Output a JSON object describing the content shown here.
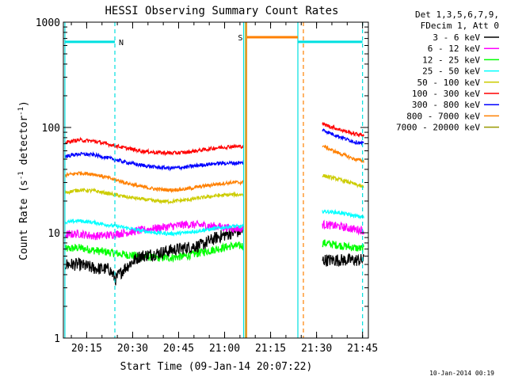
{
  "footer_timestamp": "10-Jan-2014 00:19",
  "chart_data": {
    "type": "line",
    "title": "HESSI Observing Summary Count Rates",
    "xlabel": "Start Time (09-Jan-14 20:07:22)",
    "ylabel_prefix": "Count Rate (s",
    "ylabel_sup1": "-1",
    "ylabel_mid": " detector",
    "ylabel_sup2": "-1",
    "ylabel_suffix": ")",
    "y_scale": "log",
    "ylim": [
      1,
      1000
    ],
    "xlim_minutes": [
      0,
      99.5
    ],
    "x_ticks": [
      {
        "minute": 7.6,
        "label": "20:15"
      },
      {
        "minute": 22.6,
        "label": "20:30"
      },
      {
        "minute": 37.6,
        "label": "20:45"
      },
      {
        "minute": 52.6,
        "label": "21:00"
      },
      {
        "minute": 67.6,
        "label": "21:15"
      },
      {
        "minute": 82.6,
        "label": "21:30"
      },
      {
        "minute": 97.6,
        "label": "21:45"
      }
    ],
    "y_ticks": [
      {
        "value": 1,
        "label": "1"
      },
      {
        "value": 10,
        "label": "10"
      },
      {
        "value": 100,
        "label": "100"
      },
      {
        "value": 1000,
        "label": "1000"
      }
    ],
    "legend": {
      "header1": "Det 1,3,5,6,7,9,",
      "header2": "FDecim 1, Att 0",
      "placement": "right"
    },
    "series": [
      {
        "name": "3 - 6 keV",
        "color": "#000000",
        "seg1": [
          [
            0.5,
            5
          ],
          [
            5,
            5
          ],
          [
            10,
            4.6
          ],
          [
            15,
            4.5
          ],
          [
            17,
            3.6
          ],
          [
            20,
            4.6
          ],
          [
            25,
            6
          ],
          [
            30,
            6.3
          ],
          [
            35,
            6.8
          ],
          [
            40,
            7.2
          ],
          [
            45,
            7.6
          ],
          [
            50,
            9
          ],
          [
            55,
            10
          ],
          [
            58.8,
            10.5
          ]
        ],
        "seg2": [
          [
            84.5,
            5.5
          ],
          [
            90,
            5.5
          ],
          [
            95,
            5.5
          ],
          [
            98,
            5.5
          ]
        ]
      },
      {
        "name": "6 - 12 keV",
        "color": "#ff00ff",
        "seg1": [
          [
            0.5,
            9.5
          ],
          [
            5,
            9.8
          ],
          [
            10,
            9.3
          ],
          [
            15,
            9.5
          ],
          [
            20,
            10
          ],
          [
            25,
            10.5
          ],
          [
            30,
            11
          ],
          [
            35,
            11.5
          ],
          [
            40,
            12
          ],
          [
            45,
            11.8
          ],
          [
            50,
            11.5
          ],
          [
            55,
            11
          ],
          [
            58.8,
            11
          ]
        ],
        "seg2": [
          [
            84.5,
            12
          ],
          [
            90,
            11.5
          ],
          [
            95,
            10.8
          ],
          [
            98,
            10.5
          ]
        ]
      },
      {
        "name": "12 - 25 keV",
        "color": "#00ff00",
        "seg1": [
          [
            0.5,
            7
          ],
          [
            5,
            7.2
          ],
          [
            10,
            6.8
          ],
          [
            15,
            6.5
          ],
          [
            20,
            6.2
          ],
          [
            25,
            6
          ],
          [
            30,
            5.8
          ],
          [
            35,
            5.8
          ],
          [
            40,
            6
          ],
          [
            45,
            6.5
          ],
          [
            50,
            7
          ],
          [
            55,
            7.5
          ],
          [
            58.8,
            7.5
          ]
        ],
        "seg2": [
          [
            84.5,
            8
          ],
          [
            90,
            7.6
          ],
          [
            95,
            7.2
          ],
          [
            98,
            7
          ]
        ]
      },
      {
        "name": "25 - 50 keV",
        "color": "#00ffff",
        "seg1": [
          [
            0.5,
            12.5
          ],
          [
            5,
            13
          ],
          [
            10,
            12.5
          ],
          [
            15,
            11.8
          ],
          [
            20,
            11.2
          ],
          [
            25,
            10.5
          ],
          [
            30,
            10
          ],
          [
            35,
            9.8
          ],
          [
            40,
            10
          ],
          [
            45,
            10.5
          ],
          [
            50,
            11
          ],
          [
            55,
            11.5
          ],
          [
            58.8,
            11.5
          ]
        ],
        "seg2": [
          [
            84.5,
            16
          ],
          [
            90,
            15.5
          ],
          [
            95,
            14.5
          ],
          [
            98,
            14
          ]
        ]
      },
      {
        "name": "50 - 100 keV",
        "color": "#cccc00",
        "seg1": [
          [
            0.5,
            24
          ],
          [
            5,
            25.5
          ],
          [
            10,
            25
          ],
          [
            15,
            23.5
          ],
          [
            20,
            22
          ],
          [
            25,
            21
          ],
          [
            30,
            20
          ],
          [
            35,
            19.8
          ],
          [
            40,
            20.5
          ],
          [
            45,
            21.5
          ],
          [
            50,
            22.5
          ],
          [
            55,
            23
          ],
          [
            58.8,
            23
          ]
        ],
        "seg2": [
          [
            84.5,
            35
          ],
          [
            90,
            32
          ],
          [
            95,
            29
          ],
          [
            98,
            27
          ]
        ]
      },
      {
        "name": "100 - 300 keV",
        "color": "#ff0000",
        "seg1": [
          [
            0.5,
            72
          ],
          [
            5,
            76
          ],
          [
            10,
            74
          ],
          [
            15,
            69
          ],
          [
            20,
            64
          ],
          [
            25,
            60
          ],
          [
            30,
            58
          ],
          [
            35,
            57
          ],
          [
            40,
            58
          ],
          [
            45,
            61
          ],
          [
            50,
            64
          ],
          [
            55,
            66
          ],
          [
            58.8,
            66
          ]
        ],
        "seg2": [
          [
            84.5,
            108
          ],
          [
            88,
            100
          ],
          [
            92,
            92
          ],
          [
            95,
            87
          ],
          [
            98,
            85
          ]
        ]
      },
      {
        "name": "300 - 800 keV",
        "color": "#0000ff",
        "seg1": [
          [
            0.5,
            53
          ],
          [
            5,
            56
          ],
          [
            10,
            55
          ],
          [
            15,
            51
          ],
          [
            20,
            47
          ],
          [
            25,
            44
          ],
          [
            30,
            42
          ],
          [
            35,
            41
          ],
          [
            40,
            42
          ],
          [
            45,
            44
          ],
          [
            50,
            45.5
          ],
          [
            55,
            46
          ],
          [
            58.8,
            46
          ]
        ],
        "seg2": [
          [
            84.5,
            95
          ],
          [
            88,
            86
          ],
          [
            92,
            78
          ],
          [
            95,
            73
          ],
          [
            98,
            70
          ]
        ]
      },
      {
        "name": "800 - 7000 keV",
        "color": "#ff8000",
        "seg1": [
          [
            0.5,
            35
          ],
          [
            5,
            37
          ],
          [
            10,
            36
          ],
          [
            15,
            33
          ],
          [
            20,
            30
          ],
          [
            25,
            27.5
          ],
          [
            30,
            26
          ],
          [
            35,
            25.5
          ],
          [
            40,
            26
          ],
          [
            45,
            27.5
          ],
          [
            50,
            29
          ],
          [
            55,
            30
          ],
          [
            58.8,
            30
          ]
        ],
        "seg2": [
          [
            84.5,
            67
          ],
          [
            88,
            60
          ],
          [
            92,
            54
          ],
          [
            95,
            50
          ],
          [
            98,
            48
          ]
        ]
      },
      {
        "name": "7000 - 20000 keV",
        "color": "#999900",
        "seg1": [],
        "seg2": []
      }
    ],
    "state_markers": [
      {
        "label": "N",
        "color": "#00e0e0",
        "x_start": 0.5,
        "x_end": 16.8,
        "level": 650
      },
      {
        "label": "S",
        "color": "#ff8000",
        "x_start": 59.8,
        "x_end": 76.5,
        "level": 720
      },
      {
        "label": "",
        "color": "#00e0e0",
        "x_start": 76.5,
        "x_end": 97.6,
        "level": 650
      }
    ],
    "vlines": [
      {
        "minute": 0.5,
        "color": "#00e0e0",
        "style": "solid"
      },
      {
        "minute": 16.8,
        "color": "#00e0e0",
        "style": "dashed"
      },
      {
        "minute": 58.8,
        "color": "#00e0e0",
        "style": "solid"
      },
      {
        "minute": 59.4,
        "color": "#999900",
        "style": "solid"
      },
      {
        "minute": 59.8,
        "color": "#ff8000",
        "style": "solid"
      },
      {
        "minute": 76.5,
        "color": "#00e0e0",
        "style": "solid"
      },
      {
        "minute": 78.3,
        "color": "#ff8000",
        "style": "dashed"
      },
      {
        "minute": 97.6,
        "color": "#00e0e0",
        "style": "dashed"
      }
    ]
  }
}
